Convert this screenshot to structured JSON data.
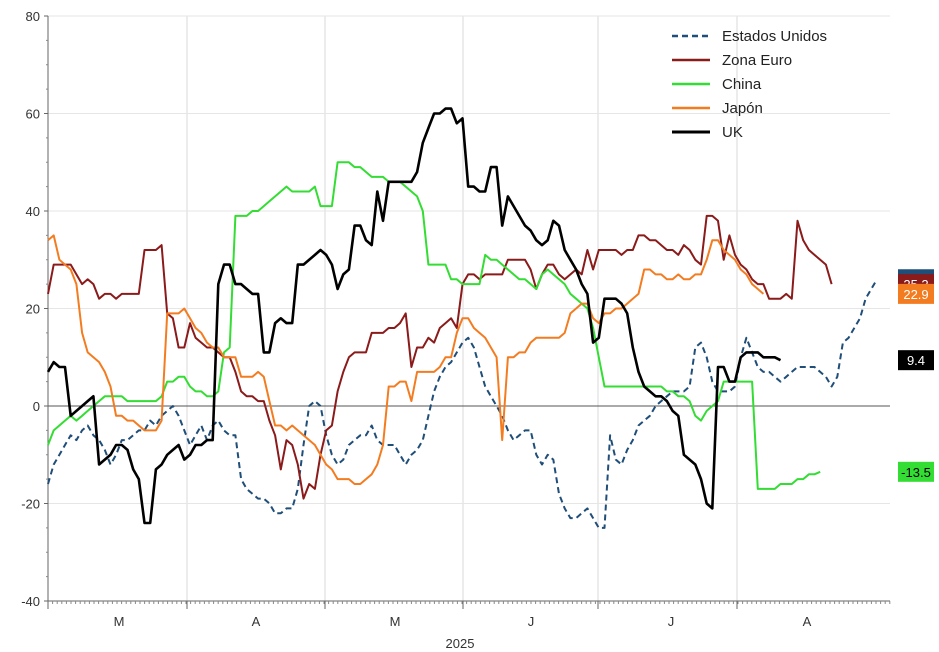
{
  "chart_data": {
    "type": "line",
    "xlabel": "2025",
    "ylabel": "",
    "ylim": [
      -40,
      80
    ],
    "yticks": [
      -40,
      -20,
      0,
      20,
      40,
      60,
      80
    ],
    "month_labels": [
      "M",
      "A",
      "M",
      "J",
      "J",
      "A"
    ],
    "grid": true,
    "legend_position": "top-right",
    "series": [
      {
        "name": "Estados Unidos",
        "color": "#1f4e79",
        "dash": "dashed",
        "badge": "26.2",
        "values": [
          -16,
          -12,
          -10,
          -8,
          -6,
          -7,
          -5,
          -4,
          -6,
          -7,
          -9,
          -12,
          -10,
          -7,
          -7,
          -6,
          -5,
          -5,
          -3,
          -4,
          -2,
          -1,
          0,
          -2,
          -5,
          -8,
          -6,
          -4,
          -7,
          -4,
          -3,
          -5,
          -6,
          -6,
          -15,
          -17,
          -18,
          -19,
          -19,
          -20,
          -22,
          -22,
          -21,
          -21,
          -17,
          -8,
          0,
          1,
          0,
          -6,
          -10,
          -12,
          -11,
          -8,
          -7,
          -6,
          -6,
          -4,
          -7,
          -8,
          -8,
          -8,
          -10,
          -12,
          -10,
          -9,
          -7,
          -2,
          3,
          6,
          8,
          9,
          11,
          13,
          14,
          12,
          8,
          4,
          2,
          0,
          -2,
          -5,
          -7,
          -6,
          -5,
          -5,
          -10,
          -12,
          -10,
          -11,
          -18,
          -21,
          -23,
          -23,
          -22,
          -21,
          -23,
          -25,
          -25,
          -6,
          -11,
          -12,
          -9,
          -7,
          -4,
          -3,
          -2,
          0,
          1,
          2,
          3,
          3,
          3,
          4,
          12,
          13,
          10,
          5,
          3,
          3,
          3,
          4,
          10,
          14,
          11,
          8,
          7,
          7,
          6,
          5,
          6,
          7,
          8,
          8,
          8,
          8,
          7,
          6,
          4,
          6,
          13,
          14,
          16,
          18,
          22,
          24,
          26
        ]
      },
      {
        "name": "Zona Euro",
        "color": "#8b1a1a",
        "dash": "solid",
        "badge": "25.2",
        "values": [
          23,
          29,
          29,
          29,
          29,
          27,
          25,
          26,
          25,
          22,
          23,
          23,
          22,
          23,
          23,
          23,
          23,
          32,
          32,
          32,
          33,
          19,
          18,
          12,
          12,
          17,
          14,
          13,
          12,
          12,
          11,
          10,
          10,
          7,
          3,
          2,
          2,
          1,
          1,
          -3,
          -6,
          -13,
          -7,
          -8,
          -12,
          -19,
          -16,
          -17,
          -10,
          -5,
          -4,
          3,
          7,
          10,
          11,
          11,
          11,
          15,
          15,
          15,
          16,
          16,
          17,
          19,
          8,
          12,
          12,
          14,
          13,
          16,
          17,
          18,
          16,
          25,
          27,
          27,
          26,
          27,
          27,
          27,
          27,
          30,
          30,
          30,
          30,
          28,
          24,
          27,
          29,
          29,
          27,
          26,
          27,
          28,
          27,
          32,
          28,
          32,
          32,
          32,
          32,
          31,
          32,
          32,
          35,
          35,
          34,
          34,
          33,
          32,
          32,
          31,
          33,
          32,
          30,
          29,
          39,
          39,
          38,
          30,
          35,
          31,
          29,
          28,
          26,
          25,
          25,
          22,
          22,
          22,
          23,
          22,
          38,
          34,
          32,
          31,
          30,
          29,
          25
        ]
      },
      {
        "name": "China",
        "color": "#33dd33",
        "dash": "solid",
        "badge": "-13.5",
        "values": [
          -8,
          -5,
          -4,
          -3,
          -2,
          -3,
          -2,
          -1,
          0,
          1,
          2,
          2,
          2,
          2,
          1,
          1,
          1,
          1,
          1,
          1,
          2,
          5,
          5,
          6,
          6,
          4,
          3,
          3,
          2,
          2,
          3,
          11,
          12,
          39,
          39,
          39,
          40,
          40,
          41,
          42,
          43,
          44,
          45,
          44,
          44,
          44,
          44,
          45,
          41,
          41,
          41,
          50,
          50,
          50,
          49,
          49,
          48,
          47,
          47,
          47,
          46,
          46,
          46,
          45,
          44,
          43,
          40,
          29,
          29,
          29,
          29,
          26,
          26,
          25,
          25,
          25,
          25,
          31,
          30,
          30,
          29,
          28,
          27,
          26,
          26,
          25,
          24,
          27,
          28,
          27,
          26,
          25,
          23,
          22,
          21,
          20,
          16,
          10,
          4,
          4,
          4,
          4,
          4,
          4,
          4,
          4,
          4,
          4,
          4,
          3,
          3,
          2,
          2,
          1,
          -2,
          -3,
          -1,
          0,
          1,
          5,
          5,
          5,
          5,
          5,
          5,
          -17,
          -17,
          -17,
          -17,
          -16,
          -16,
          -16,
          -15,
          -15,
          -14,
          -14,
          -13.5
        ]
      },
      {
        "name": "Japón",
        "color": "#f47c20",
        "dash": "solid",
        "badge": "22.9",
        "values": [
          34,
          35,
          30,
          29,
          28,
          25,
          15,
          11,
          10,
          9,
          7,
          4,
          -2,
          -2,
          -3,
          -3,
          -4,
          -5,
          -5,
          -5,
          -3,
          19,
          19,
          19,
          20,
          18,
          16,
          15,
          13,
          12,
          12,
          10,
          10,
          10,
          6,
          6,
          6,
          7,
          6,
          1,
          -4,
          -4,
          -5,
          -4,
          -5,
          -6,
          -7,
          -8,
          -10,
          -12,
          -13,
          -15,
          -15,
          -15,
          -16,
          -16,
          -15,
          -14,
          -12,
          -8,
          4,
          4,
          5,
          5,
          1,
          7,
          7,
          7,
          7,
          8,
          10,
          10,
          15,
          18,
          18,
          16,
          15,
          14,
          12,
          10,
          -7,
          10,
          10,
          11,
          11,
          13,
          14,
          14,
          14,
          14,
          14,
          15,
          19,
          20,
          21,
          21,
          18,
          17,
          19,
          19,
          20,
          20,
          21,
          22,
          23,
          28,
          28,
          27,
          27,
          26,
          26,
          27,
          26,
          26,
          27,
          27,
          30,
          34,
          34,
          32,
          31,
          30,
          28,
          27,
          25,
          24,
          23
        ]
      },
      {
        "name": "UK",
        "color": "#000000",
        "dash": "solid",
        "badge": "9.4",
        "values": [
          7,
          9,
          8,
          8,
          -2,
          -1,
          0,
          1,
          2,
          -12,
          -11,
          -10,
          -8,
          -8,
          -9,
          -13,
          -15,
          -24,
          -24,
          -13,
          -12,
          -10,
          -9,
          -8,
          -11,
          -10,
          -8,
          -8,
          -7,
          -7,
          25,
          29,
          29,
          25,
          25,
          24,
          23,
          23,
          11,
          11,
          17,
          18,
          17,
          17,
          29,
          29,
          30,
          31,
          32,
          31,
          29,
          24,
          27,
          28,
          37,
          37,
          34,
          33,
          44,
          38,
          46,
          46,
          46,
          46,
          46,
          48,
          54,
          57,
          60,
          60,
          61,
          61,
          58,
          59,
          45,
          45,
          44,
          44,
          49,
          49,
          37,
          43,
          41,
          39,
          37,
          36,
          34,
          33,
          34,
          38,
          37,
          32,
          30,
          28,
          25,
          23,
          13,
          14,
          22,
          22,
          22,
          21,
          19,
          12,
          7,
          4,
          3,
          2,
          2,
          1,
          -1,
          -2,
          -10,
          -11,
          -12,
          -15,
          -20,
          -21,
          8,
          8,
          5,
          5,
          10,
          11,
          11,
          11,
          10,
          10,
          10,
          9.4
        ]
      }
    ]
  }
}
